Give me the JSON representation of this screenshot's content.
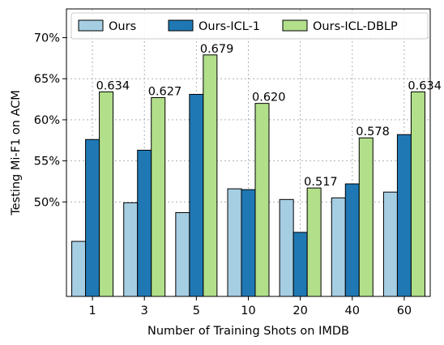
{
  "chart_data": {
    "type": "bar",
    "xlabel": "Number of Training Shots on IMDB",
    "ylabel": "Testing Mi-F1 on ACM",
    "categories": [
      "1",
      "3",
      "5",
      "10",
      "20",
      "40",
      "60"
    ],
    "ylim": [
      0.385,
      0.735
    ],
    "yticks": [
      0.5,
      0.55,
      0.6,
      0.65,
      0.7
    ],
    "ytick_labels": [
      "50%",
      "55%",
      "60%",
      "65%",
      "70%"
    ],
    "grid": true,
    "legend_position": "top",
    "series": [
      {
        "name": "Ours",
        "color": "#a6cee3",
        "values": [
          0.452,
          0.499,
          0.487,
          0.516,
          0.503,
          0.505,
          0.512
        ]
      },
      {
        "name": "Ours-ICL-1",
        "color": "#1f78b4",
        "values": [
          0.576,
          0.563,
          0.631,
          0.515,
          0.463,
          0.522,
          0.582
        ]
      },
      {
        "name": "Ours-ICL-DBLP",
        "color": "#b2df8a",
        "values": [
          0.634,
          0.627,
          0.679,
          0.62,
          0.517,
          0.578,
          0.634
        ],
        "data_labels": [
          "0.634",
          "0.627",
          "0.679",
          "0.620",
          "0.517",
          "0.578",
          "0.634"
        ]
      }
    ]
  }
}
